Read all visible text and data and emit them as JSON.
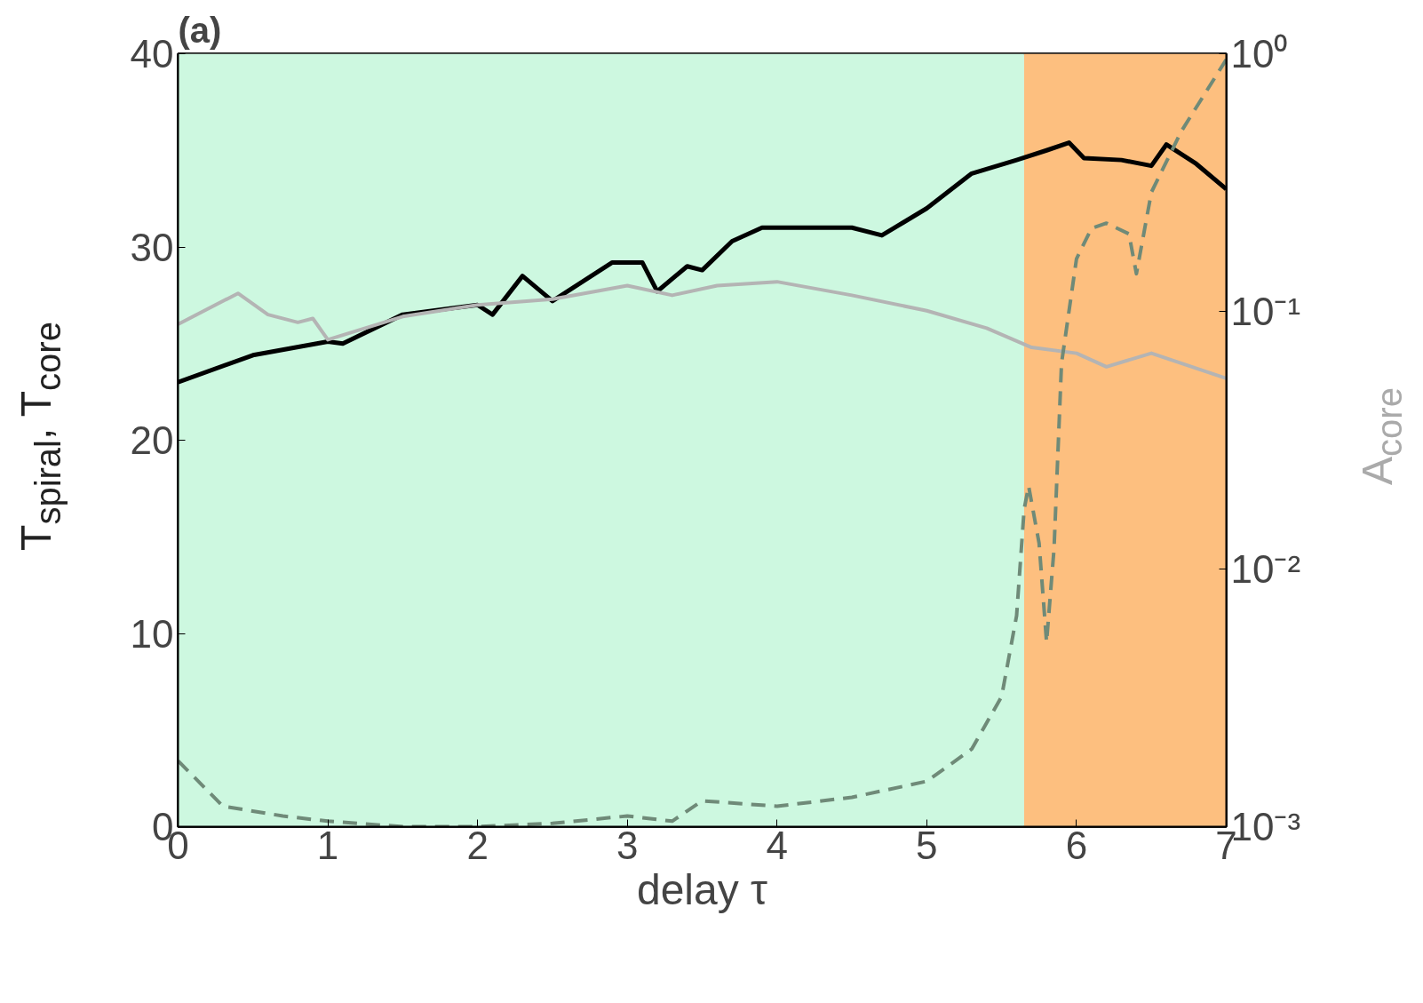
{
  "chart_data": {
    "type": "line",
    "title": "(a)",
    "xlabel": "delay τ",
    "ylabel": "T$_{spiral}$, T$_{core}$",
    "y2label": "A$_{core}$",
    "xlim": [
      0,
      7
    ],
    "xticks": [
      0,
      1,
      2,
      3,
      4,
      5,
      6,
      7
    ],
    "ylim": [
      0,
      40
    ],
    "yticks": [
      0,
      10,
      20,
      30,
      40
    ],
    "y2lim": [
      0.001,
      1
    ],
    "y2ticks": [
      {
        "value": 0.001,
        "label": "10⁻³"
      },
      {
        "value": 0.01,
        "label": "10⁻²"
      },
      {
        "value": 0.1,
        "label": "10⁻¹"
      },
      {
        "value": 1,
        "label": "10⁰"
      }
    ],
    "log": "y2",
    "grid": false,
    "bands": [
      {
        "axis": "x",
        "from": 0,
        "to": 5.65,
        "label": null,
        "color": "#cdf8e0"
      },
      {
        "axis": "x",
        "from": 5.65,
        "to": 7,
        "label": null,
        "color": "#fdbf7f"
      }
    ],
    "series": [
      {
        "color": "#000000",
        "line_style": "solid",
        "x": [
          0,
          0.5,
          1,
          1.1,
          1.5,
          2,
          2.1,
          2.3,
          2.5,
          2.9,
          3.1,
          3.2,
          3.4,
          3.5,
          3.7,
          3.9,
          4.5,
          4.7,
          5.0,
          5.3,
          5.6,
          5.8,
          5.95,
          6.05,
          6.3,
          6.5,
          6.6,
          6.8,
          7
        ],
        "values": [
          23,
          24.4,
          25.1,
          25,
          26.5,
          27,
          26.5,
          28.5,
          27.2,
          29.2,
          29.2,
          27.7,
          29,
          28.8,
          30.3,
          31,
          31,
          30.6,
          32,
          33.8,
          34.5,
          35,
          35.4,
          34.6,
          34.5,
          34.2,
          35.3,
          34.3,
          33
        ]
      },
      {
        "color": "#b4b4b4",
        "line_style": "solid",
        "x": [
          0,
          0.4,
          0.6,
          0.8,
          0.9,
          1.0,
          1.5,
          2,
          2.5,
          3,
          3.3,
          3.6,
          4,
          4.5,
          5,
          5.4,
          5.7,
          6,
          6.2,
          6.5,
          7
        ],
        "values": [
          26,
          27.6,
          26.5,
          26.1,
          26.3,
          25.2,
          26.4,
          27,
          27.3,
          28,
          27.5,
          28,
          28.2,
          27.5,
          26.7,
          25.8,
          24.8,
          24.5,
          23.8,
          24.5,
          23.2
        ]
      },
      {
        "color": "#6f8a78",
        "line_style": "dashed",
        "axis": "y2",
        "x": [
          0,
          0.3,
          0.7,
          1,
          1.5,
          2,
          2.5,
          3,
          3.3,
          3.5,
          4,
          4.5,
          5,
          5.3,
          5.5,
          5.6,
          5.65,
          5.68,
          5.75,
          5.8,
          5.85,
          5.9,
          6.0,
          6.1,
          6.2,
          6.35,
          6.4,
          6.5,
          6.7,
          7
        ],
        "values": [
          0.0018,
          0.0012,
          0.0011,
          0.00105,
          0.001,
          0.001,
          0.00103,
          0.0011,
          0.00105,
          0.00126,
          0.0012,
          0.0013,
          0.0015,
          0.002,
          0.0032,
          0.0066,
          0.017,
          0.021,
          0.0126,
          0.0052,
          0.012,
          0.063,
          0.16,
          0.21,
          0.22,
          0.2,
          0.14,
          0.29,
          0.5,
          0.95
        ]
      }
    ]
  }
}
